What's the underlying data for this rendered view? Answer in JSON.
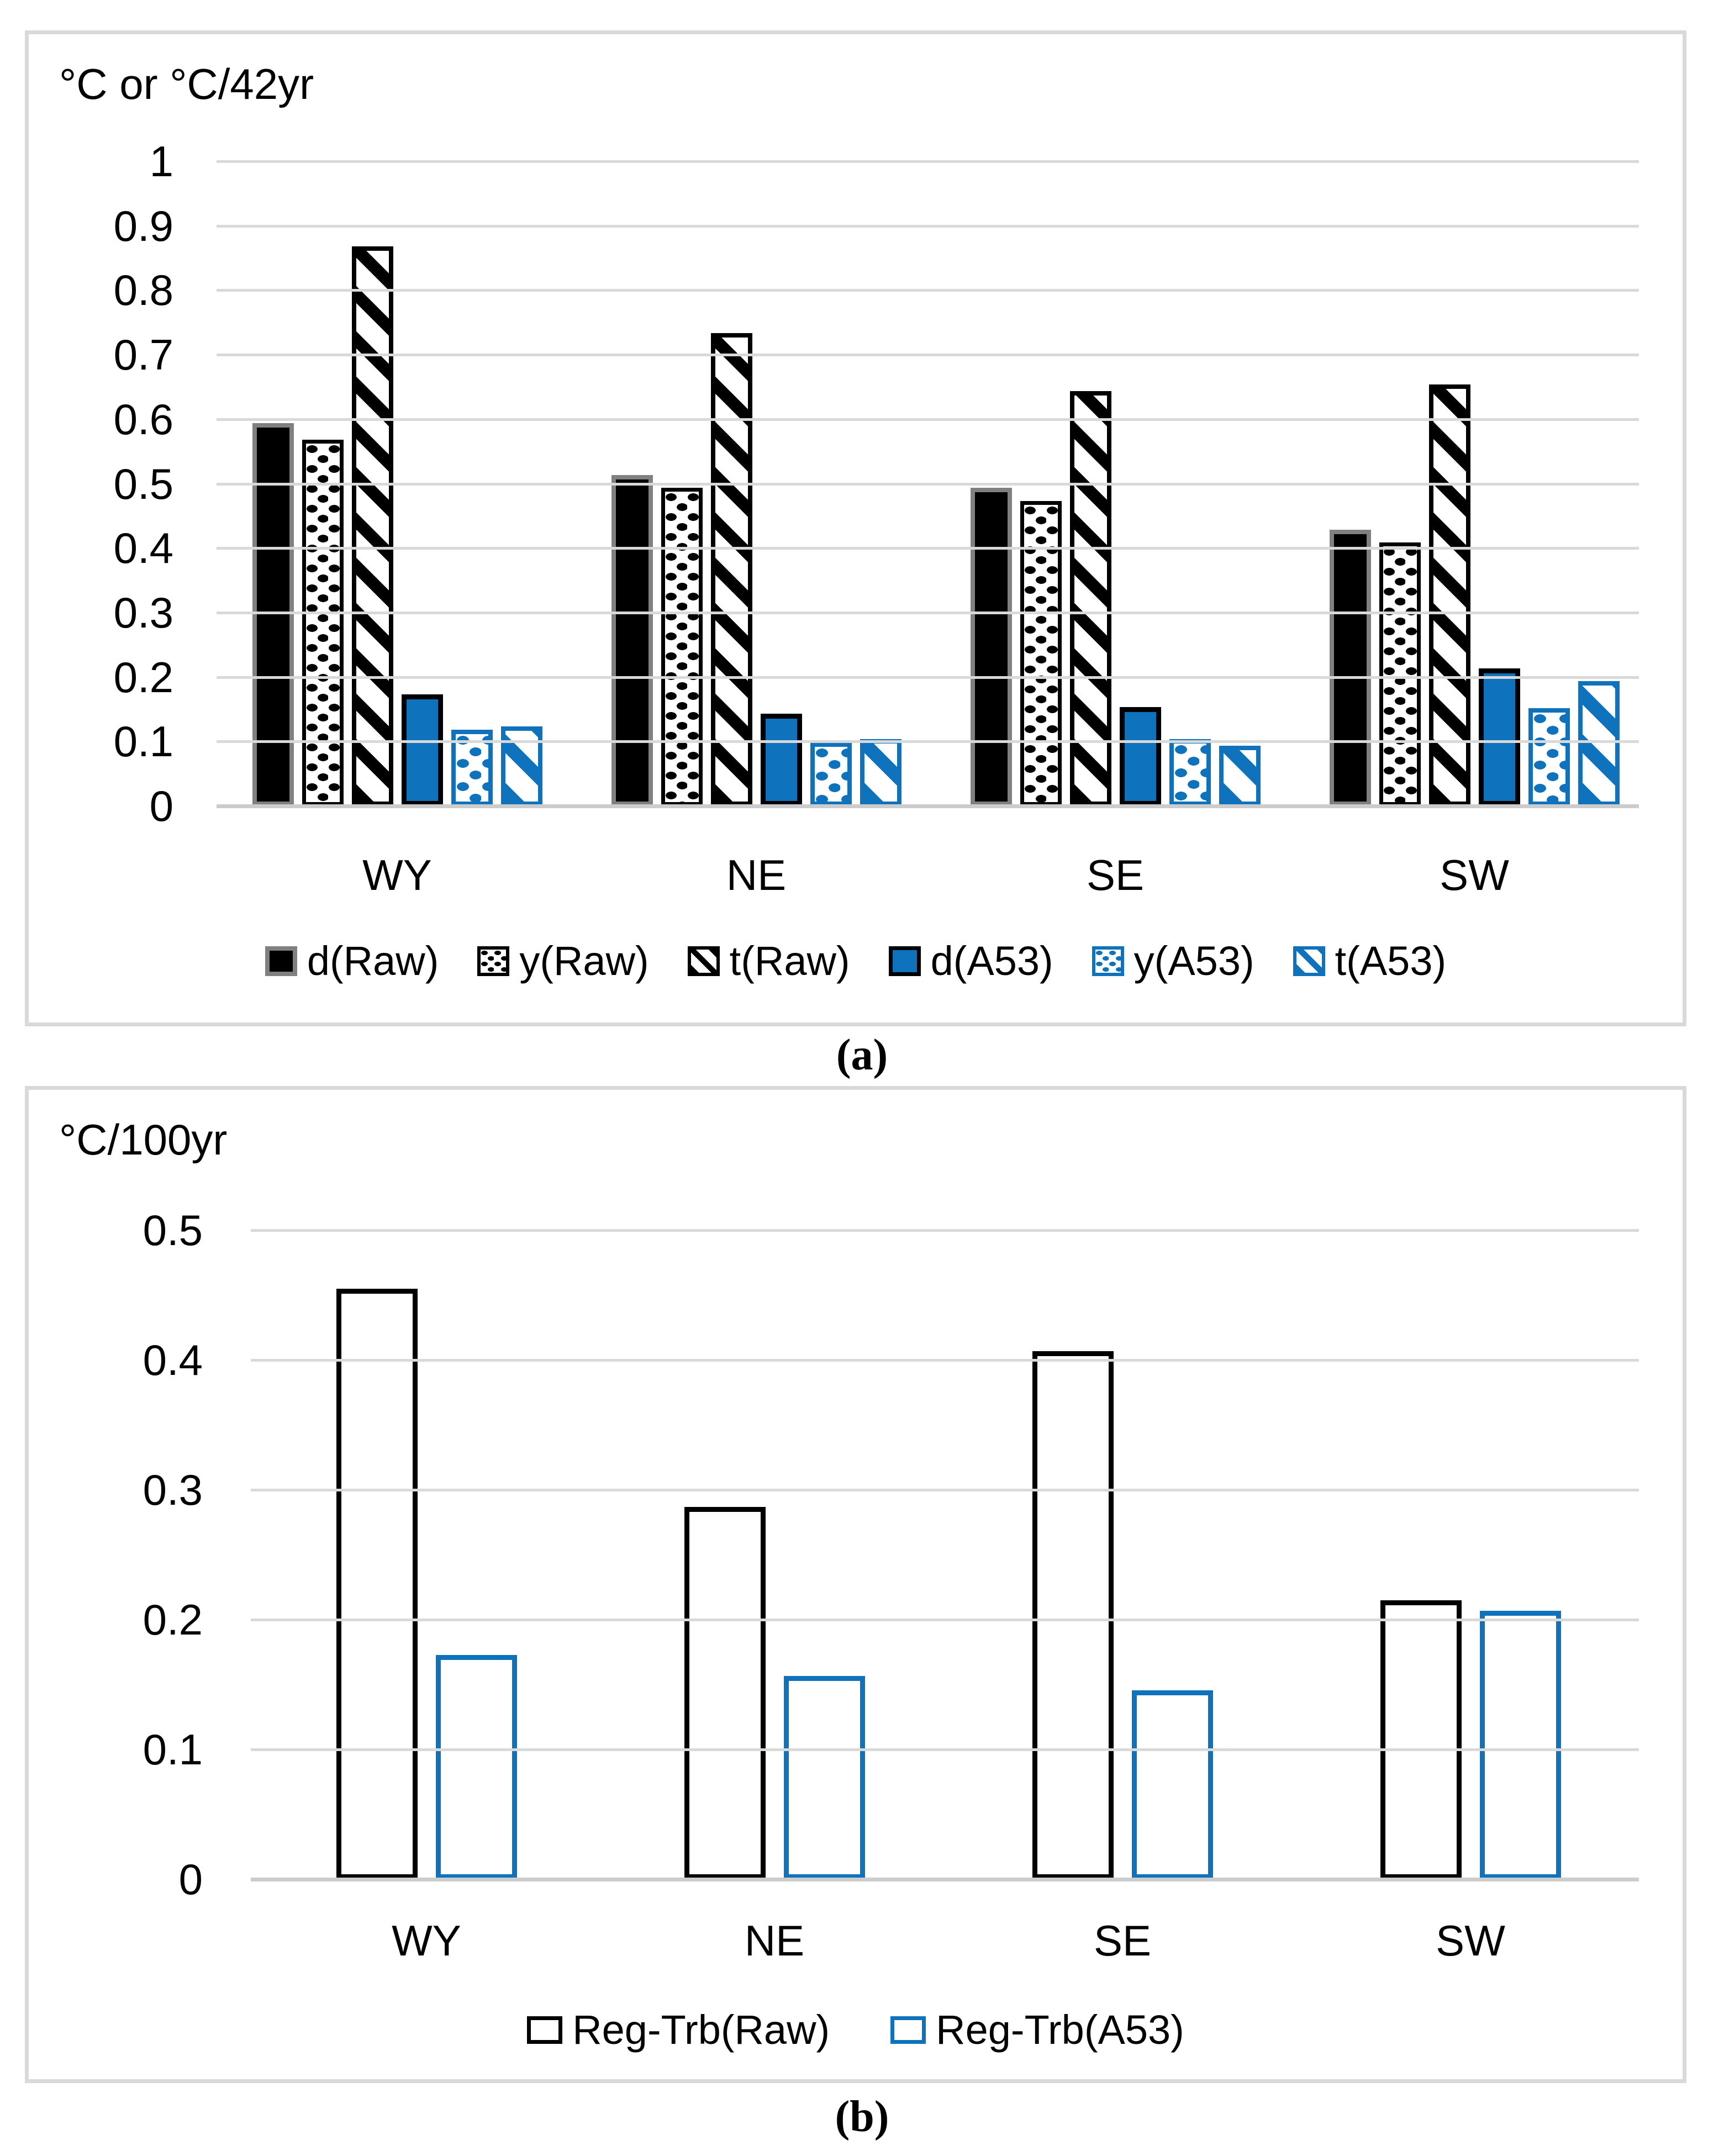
{
  "figure": {
    "captions": [
      "(a)",
      "(b)"
    ]
  },
  "colors": {
    "accent_blue": "#0e72bc",
    "bar_black": "#000000",
    "gray_bar_border": "#808080",
    "gridline_gray": "#d9d9d9"
  },
  "chart_data": [
    {
      "type": "bar",
      "title": "°C or °C/42yr",
      "categories": [
        "WY",
        "NE",
        "SE",
        "SW"
      ],
      "ylim": [
        0,
        1
      ],
      "ytick_labels": [
        "1",
        "0.9",
        "0.8",
        "0.7",
        "0.6",
        "0.5",
        "0.4",
        "0.3",
        "0.2",
        "0.1",
        "0"
      ],
      "grid": true,
      "legend_position": "bottom",
      "series": [
        {
          "name": "d(Raw)",
          "style": "d-raw",
          "values": [
            0.59,
            0.51,
            0.49,
            0.425
          ]
        },
        {
          "name": "y(Raw)",
          "style": "y-raw",
          "values": [
            0.565,
            0.49,
            0.47,
            0.405
          ]
        },
        {
          "name": "t(Raw)",
          "style": "t-raw",
          "values": [
            0.865,
            0.73,
            0.64,
            0.65
          ]
        },
        {
          "name": "d(A53)",
          "style": "d-a53",
          "values": [
            0.17,
            0.14,
            0.15,
            0.21
          ]
        },
        {
          "name": "y(A53)",
          "style": "y-a53",
          "values": [
            0.115,
            0.095,
            0.1,
            0.148
          ]
        },
        {
          "name": "t(A53)",
          "style": "t-a53",
          "values": [
            0.12,
            0.1,
            0.09,
            0.19
          ]
        }
      ]
    },
    {
      "type": "bar",
      "title": "°C/100yr",
      "categories": [
        "WY",
        "NE",
        "SE",
        "SW"
      ],
      "ylim": [
        0,
        0.5
      ],
      "ytick_labels": [
        "0.5",
        "0.4",
        "0.3",
        "0.2",
        "0.1",
        "0"
      ],
      "grid": true,
      "legend_position": "bottom",
      "series": [
        {
          "name": "Reg-Trb(Raw)",
          "style": "reg-raw",
          "values": [
            0.453,
            0.285,
            0.405,
            0.213
          ]
        },
        {
          "name": "Reg-Trb(A53)",
          "style": "reg-a53",
          "values": [
            0.171,
            0.155,
            0.144,
            0.205
          ]
        }
      ]
    }
  ]
}
